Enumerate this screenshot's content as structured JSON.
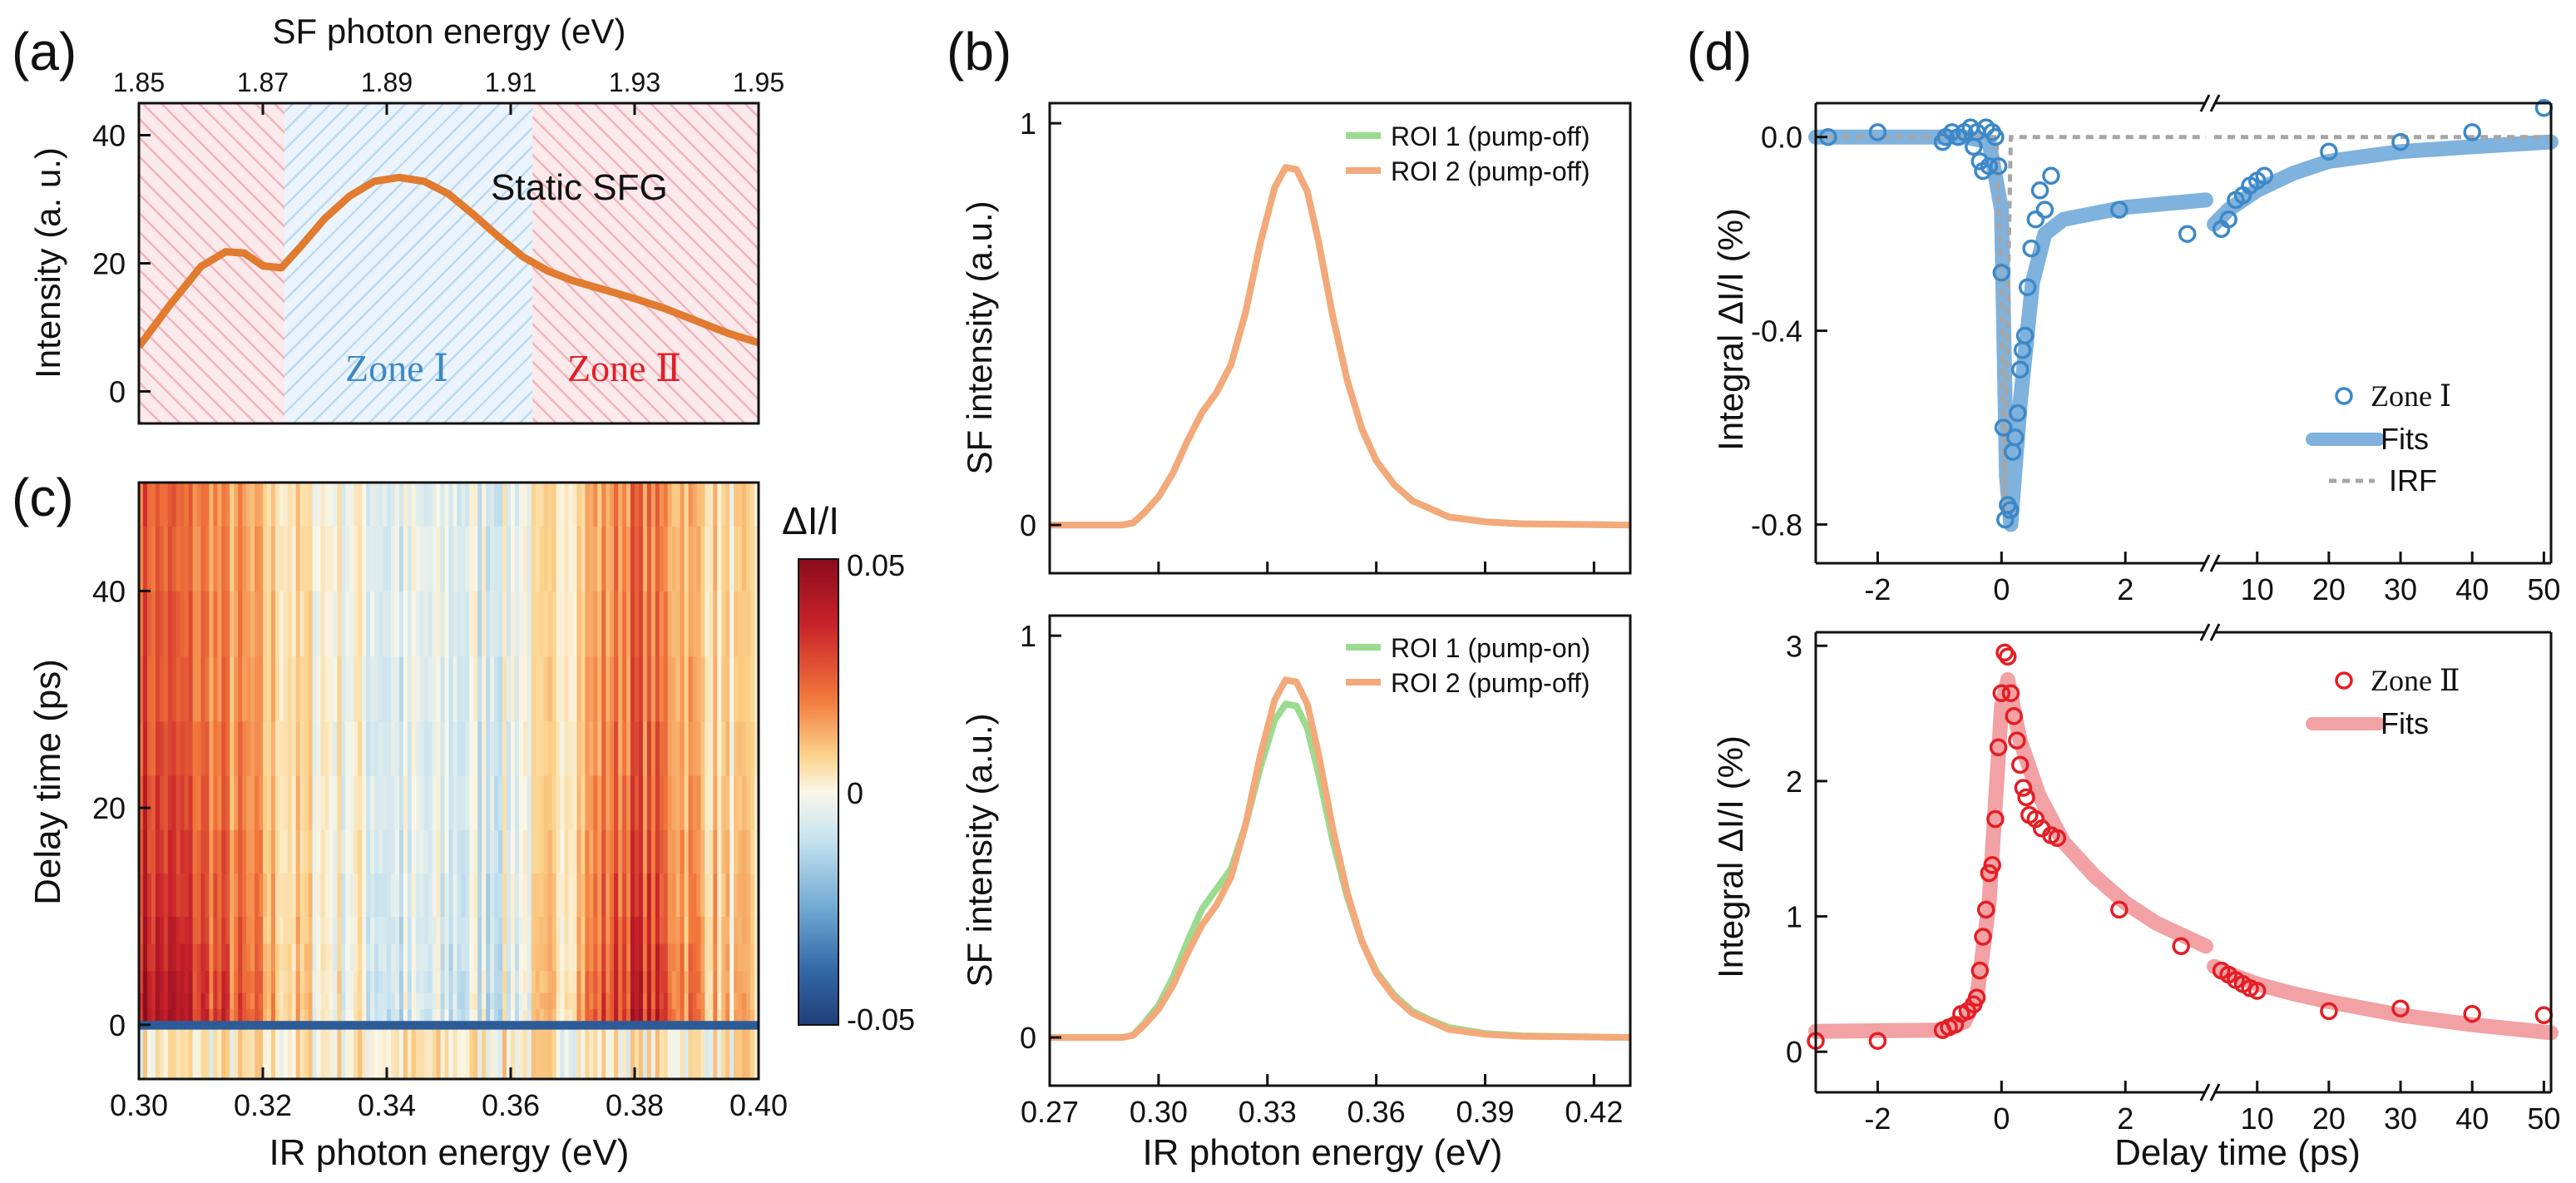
{
  "panel_labels": [
    "(a)",
    "(b)",
    "(c)",
    "(d)"
  ],
  "colors": {
    "orange": "#E07B2F",
    "zone1": "#3C88C8",
    "zone2": "#E31E24",
    "fit1": "#7FB2DD",
    "fit2": "#F2A1A4",
    "green": "#9BDB8F",
    "orange_light": "#F3A97A",
    "irf": "#A6A6A6"
  },
  "chart_data": [
    {
      "id": "a",
      "type": "line",
      "top_xlabel": "SF photon energy (eV)",
      "top_ticks": [
        "1.85",
        "1.87",
        "1.89",
        "1.91",
        "1.93",
        "1.95"
      ],
      "top_range": [
        1.85,
        1.95
      ],
      "ylabel": "Intensity (a. u.)",
      "yticks": [
        "0",
        "20",
        "40"
      ],
      "ylim": [
        -5,
        45
      ],
      "x": [
        0.3,
        0.305,
        0.31,
        0.314,
        0.317,
        0.32,
        0.323,
        0.326,
        0.33,
        0.334,
        0.338,
        0.342,
        0.346,
        0.35,
        0.354,
        0.358,
        0.362,
        0.366,
        0.37,
        0.375,
        0.38,
        0.385,
        0.39,
        0.395,
        0.4
      ],
      "y": [
        7,
        13.5,
        19.5,
        21.8,
        21.6,
        19.6,
        19.3,
        22.5,
        27,
        30.5,
        32.8,
        33.4,
        32.8,
        30.8,
        27.6,
        24.2,
        21.0,
        18.8,
        17.3,
        15.9,
        14.5,
        12.9,
        11.0,
        9.1,
        7.6
      ],
      "xlim": [
        0.3,
        0.4
      ],
      "zones": [
        {
          "name": "Zone Ⅰ",
          "from": 0.3235,
          "to": 0.3635
        },
        {
          "name": "Zone Ⅱ",
          "from": 0.3635,
          "to": 0.4
        }
      ],
      "annotation": "Static SFG",
      "zone1_label": "Zone Ⅰ",
      "zone2_label": "Zone Ⅱ"
    },
    {
      "id": "b_top",
      "type": "line",
      "ylabel": "SF intensity (a.u.)",
      "yticks": [
        "0",
        "1"
      ],
      "ylim": [
        -0.12,
        1.05
      ],
      "xlim": [
        0.27,
        0.43
      ],
      "x": [
        0.27,
        0.29,
        0.293,
        0.296,
        0.3,
        0.304,
        0.308,
        0.312,
        0.316,
        0.32,
        0.324,
        0.328,
        0.332,
        0.335,
        0.338,
        0.341,
        0.344,
        0.348,
        0.352,
        0.356,
        0.36,
        0.365,
        0.37,
        0.375,
        0.38,
        0.39,
        0.4,
        0.43
      ],
      "series": [
        {
          "name": "ROI 1 (pump-off)",
          "color": "#9BDB8F",
          "values": [
            0,
            0,
            0.005,
            0.03,
            0.07,
            0.13,
            0.21,
            0.28,
            0.33,
            0.4,
            0.53,
            0.7,
            0.84,
            0.89,
            0.885,
            0.83,
            0.71,
            0.52,
            0.36,
            0.24,
            0.16,
            0.1,
            0.06,
            0.04,
            0.02,
            0.008,
            0.003,
            0
          ]
        },
        {
          "name": "ROI 2 (pump-off)",
          "color": "#F3A97A",
          "values": [
            0,
            0,
            0.005,
            0.03,
            0.07,
            0.13,
            0.21,
            0.28,
            0.33,
            0.4,
            0.53,
            0.7,
            0.84,
            0.89,
            0.885,
            0.83,
            0.71,
            0.52,
            0.36,
            0.24,
            0.16,
            0.1,
            0.06,
            0.04,
            0.02,
            0.008,
            0.003,
            0
          ]
        }
      ]
    },
    {
      "id": "b_bottom",
      "type": "line",
      "ylabel": "SF intensity (a.u.)",
      "xlabel": "IR photon energy (eV)",
      "yticks": [
        "0",
        "1"
      ],
      "xticks": [
        "0.27",
        "0.30",
        "0.33",
        "0.36",
        "0.39",
        "0.42"
      ],
      "ylim": [
        -0.12,
        1.05
      ],
      "xlim": [
        0.27,
        0.43
      ],
      "x": [
        0.27,
        0.29,
        0.293,
        0.296,
        0.3,
        0.304,
        0.308,
        0.312,
        0.316,
        0.32,
        0.324,
        0.328,
        0.332,
        0.335,
        0.338,
        0.341,
        0.344,
        0.348,
        0.352,
        0.356,
        0.36,
        0.365,
        0.37,
        0.375,
        0.38,
        0.39,
        0.4,
        0.43
      ],
      "series": [
        {
          "name": "ROI 1 (pump-on)",
          "color": "#9BDB8F",
          "values": [
            0,
            0,
            0.006,
            0.035,
            0.08,
            0.15,
            0.24,
            0.32,
            0.37,
            0.42,
            0.53,
            0.67,
            0.79,
            0.83,
            0.825,
            0.77,
            0.66,
            0.49,
            0.35,
            0.24,
            0.165,
            0.105,
            0.065,
            0.043,
            0.025,
            0.01,
            0.004,
            0
          ]
        },
        {
          "name": "ROI 2 (pump-off)",
          "color": "#F3A97A",
          "values": [
            0,
            0,
            0.005,
            0.03,
            0.07,
            0.13,
            0.21,
            0.28,
            0.33,
            0.4,
            0.53,
            0.7,
            0.84,
            0.89,
            0.885,
            0.83,
            0.71,
            0.52,
            0.36,
            0.24,
            0.16,
            0.1,
            0.06,
            0.04,
            0.02,
            0.008,
            0.003,
            0
          ]
        }
      ]
    },
    {
      "id": "c",
      "type": "heatmap",
      "xlabel": "IR photon energy (eV)",
      "ylabel": "Delay time (ps)",
      "xticks": [
        "0.30",
        "0.32",
        "0.34",
        "0.36",
        "0.38",
        "0.40"
      ],
      "yticks": [
        "0",
        "20",
        "40"
      ],
      "xlim": [
        0.3,
        0.4
      ],
      "ylim": [
        -5,
        50
      ],
      "colorbar_title": "ΔI/I",
      "colorbar_ticks": [
        "0.05",
        "0",
        "-0.05"
      ],
      "colorbar_range": [
        -0.05,
        0.05
      ],
      "profile_energy": [
        0.3,
        0.305,
        0.31,
        0.315,
        0.32,
        0.325,
        0.33,
        0.335,
        0.34,
        0.345,
        0.35,
        0.355,
        0.36,
        0.365,
        0.37,
        0.375,
        0.38,
        0.385,
        0.39,
        0.395,
        0.4
      ],
      "profile_dI": [
        0.045,
        0.04,
        0.034,
        0.027,
        0.018,
        0.01,
        0.004,
        0.001,
        -0.006,
        -0.008,
        -0.007,
        -0.005,
        -0.002,
        0.005,
        0.015,
        0.028,
        0.038,
        0.03,
        0.02,
        0.01,
        0.005
      ]
    },
    {
      "id": "d_top",
      "type": "scatter",
      "ylabel": "Integral ΔI/I (%)",
      "yticks": [
        "0.0",
        "-0.4",
        "-0.8"
      ],
      "ylim": [
        -0.88,
        0.07
      ],
      "xticks_left": [
        "-2",
        "0",
        "2"
      ],
      "xticks_right": [
        "10",
        "20",
        "30",
        "40",
        "50"
      ],
      "x_break": {
        "left": [
          -3,
          3.3
        ],
        "right": [
          4,
          51
        ]
      },
      "legend": [
        "Zone Ⅰ",
        "Fits",
        "IRF"
      ],
      "points": [
        [
          -2.8,
          0.0
        ],
        [
          -2.0,
          0.01
        ],
        [
          -0.95,
          -0.01
        ],
        [
          -0.9,
          0.0
        ],
        [
          -0.8,
          0.01
        ],
        [
          -0.7,
          0.0
        ],
        [
          -0.6,
          0.01
        ],
        [
          -0.5,
          0.02
        ],
        [
          -0.45,
          -0.02
        ],
        [
          -0.4,
          0.01
        ],
        [
          -0.35,
          -0.05
        ],
        [
          -0.3,
          -0.07
        ],
        [
          -0.25,
          0.02
        ],
        [
          -0.2,
          -0.06
        ],
        [
          -0.15,
          0.01
        ],
        [
          -0.1,
          0.0
        ],
        [
          -0.05,
          -0.06
        ],
        [
          0.0,
          -0.28
        ],
        [
          0.03,
          -0.6
        ],
        [
          0.06,
          -0.79
        ],
        [
          0.1,
          -0.76
        ],
        [
          0.14,
          -0.77
        ],
        [
          0.18,
          -0.65
        ],
        [
          0.22,
          -0.62
        ],
        [
          0.26,
          -0.57
        ],
        [
          0.3,
          -0.48
        ],
        [
          0.34,
          -0.44
        ],
        [
          0.38,
          -0.41
        ],
        [
          0.42,
          -0.31
        ],
        [
          0.48,
          -0.23
        ],
        [
          0.55,
          -0.17
        ],
        [
          0.62,
          -0.11
        ],
        [
          0.7,
          -0.15
        ],
        [
          0.8,
          -0.08
        ],
        [
          1.9,
          -0.15
        ],
        [
          3.0,
          -0.2
        ],
        [
          5,
          -0.19
        ],
        [
          6,
          -0.17
        ],
        [
          7,
          -0.13
        ],
        [
          8,
          -0.12
        ],
        [
          9,
          -0.1
        ],
        [
          10,
          -0.09
        ],
        [
          11,
          -0.08
        ],
        [
          20,
          -0.03
        ],
        [
          30,
          -0.01
        ],
        [
          40,
          0.01
        ],
        [
          50,
          0.06
        ]
      ],
      "fit": [
        [
          -3,
          0
        ],
        [
          -0.6,
          0
        ],
        [
          -0.2,
          -0.01
        ],
        [
          0,
          -0.15
        ],
        [
          0.08,
          -0.7
        ],
        [
          0.15,
          -0.8
        ],
        [
          0.3,
          -0.55
        ],
        [
          0.5,
          -0.3
        ],
        [
          0.7,
          -0.2
        ],
        [
          1.0,
          -0.17
        ],
        [
          2,
          -0.145
        ],
        [
          3.3,
          -0.13
        ],
        [
          4,
          -0.18
        ],
        [
          6,
          -0.15
        ],
        [
          10,
          -0.11
        ],
        [
          15,
          -0.075
        ],
        [
          20,
          -0.05
        ],
        [
          30,
          -0.03
        ],
        [
          40,
          -0.02
        ],
        [
          51,
          -0.01
        ]
      ],
      "irf": [
        [
          -3,
          0
        ],
        [
          -0.08,
          0
        ],
        [
          0,
          -0.35
        ],
        [
          0.05,
          -0.78
        ],
        [
          0.1,
          -0.35
        ],
        [
          0.15,
          0
        ],
        [
          3.3,
          0
        ],
        [
          4,
          0
        ],
        [
          51,
          0
        ]
      ]
    },
    {
      "id": "d_bottom",
      "type": "scatter",
      "ylabel": "Integral ΔI/I (%)",
      "xlabel": "Delay time (ps)",
      "yticks": [
        "0",
        "1",
        "2",
        "3"
      ],
      "ylim": [
        -0.3,
        3.1
      ],
      "xticks_left": [
        "-2",
        "0",
        "2"
      ],
      "xticks_right": [
        "10",
        "20",
        "30",
        "40",
        "50"
      ],
      "x_break": {
        "left": [
          -3,
          3.3
        ],
        "right": [
          4,
          51
        ]
      },
      "legend": [
        "Zone Ⅱ",
        "Fits"
      ],
      "points": [
        [
          -3.0,
          0.08
        ],
        [
          -2.0,
          0.08
        ],
        [
          -0.95,
          0.16
        ],
        [
          -0.85,
          0.18
        ],
        [
          -0.75,
          0.2
        ],
        [
          -0.65,
          0.28
        ],
        [
          -0.55,
          0.3
        ],
        [
          -0.45,
          0.35
        ],
        [
          -0.4,
          0.4
        ],
        [
          -0.35,
          0.6
        ],
        [
          -0.3,
          0.85
        ],
        [
          -0.25,
          1.05
        ],
        [
          -0.2,
          1.32
        ],
        [
          -0.15,
          1.38
        ],
        [
          -0.1,
          1.72
        ],
        [
          -0.05,
          2.25
        ],
        [
          0.0,
          2.65
        ],
        [
          0.05,
          2.95
        ],
        [
          0.1,
          2.92
        ],
        [
          0.15,
          2.65
        ],
        [
          0.2,
          2.48
        ],
        [
          0.25,
          2.3
        ],
        [
          0.3,
          2.12
        ],
        [
          0.35,
          1.95
        ],
        [
          0.4,
          1.88
        ],
        [
          0.45,
          1.75
        ],
        [
          0.55,
          1.72
        ],
        [
          0.65,
          1.65
        ],
        [
          0.8,
          1.6
        ],
        [
          0.9,
          1.58
        ],
        [
          1.9,
          1.05
        ],
        [
          2.9,
          0.78
        ],
        [
          5,
          0.6
        ],
        [
          6,
          0.57
        ],
        [
          7,
          0.53
        ],
        [
          8,
          0.5
        ],
        [
          9,
          0.47
        ],
        [
          10,
          0.45
        ],
        [
          20,
          0.3
        ],
        [
          30,
          0.32
        ],
        [
          40,
          0.28
        ],
        [
          50,
          0.27
        ]
      ],
      "fit": [
        [
          -3,
          0.15
        ],
        [
          -1,
          0.16
        ],
        [
          -0.6,
          0.22
        ],
        [
          -0.4,
          0.4
        ],
        [
          -0.2,
          1.1
        ],
        [
          0,
          2.55
        ],
        [
          0.1,
          2.75
        ],
        [
          0.3,
          2.3
        ],
        [
          0.6,
          1.9
        ],
        [
          1.0,
          1.55
        ],
        [
          1.5,
          1.3
        ],
        [
          2,
          1.1
        ],
        [
          2.5,
          0.95
        ],
        [
          3.3,
          0.78
        ],
        [
          4,
          0.63
        ],
        [
          6,
          0.58
        ],
        [
          10,
          0.5
        ],
        [
          15,
          0.43
        ],
        [
          20,
          0.37
        ],
        [
          30,
          0.27
        ],
        [
          40,
          0.2
        ],
        [
          51,
          0.14
        ]
      ]
    }
  ]
}
